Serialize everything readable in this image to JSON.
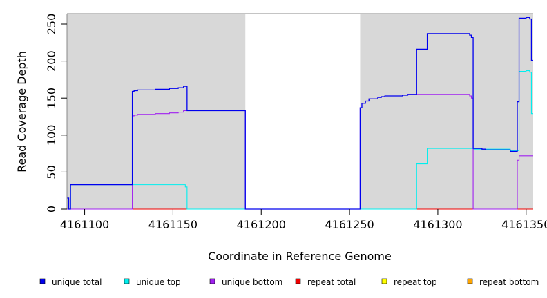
{
  "chart_data": {
    "type": "line",
    "title": "",
    "xlabel": "Coordinate in Reference Genome",
    "ylabel": "Read Coverage Depth",
    "xlim": [
      4161090,
      4161354
    ],
    "ylim": [
      0,
      264
    ],
    "xticks": [
      4161100,
      4161150,
      4161200,
      4161250,
      4161300,
      4161350
    ],
    "yticks": [
      0,
      50,
      100,
      150,
      200,
      250
    ],
    "background_color": "#d8d8d8",
    "unshaded_x_range": [
      4161191,
      4161256
    ],
    "grid": false,
    "legend_position": "bottom",
    "series": [
      {
        "name": "unique total",
        "color": "#0000ee",
        "steps": [
          [
            4161090,
            15
          ],
          [
            4161091,
            0
          ],
          [
            4161092,
            33
          ],
          [
            4161127,
            159
          ],
          [
            4161128,
            160
          ],
          [
            4161130,
            161
          ],
          [
            4161140,
            162
          ],
          [
            4161148,
            163
          ],
          [
            4161153,
            164
          ],
          [
            4161156,
            166
          ],
          [
            4161158,
            133
          ],
          [
            4161191,
            0
          ],
          [
            4161256,
            137
          ],
          [
            4161257,
            143
          ],
          [
            4161259,
            146
          ],
          [
            4161261,
            149
          ],
          [
            4161266,
            151
          ],
          [
            4161268,
            152
          ],
          [
            4161270,
            153
          ],
          [
            4161280,
            154
          ],
          [
            4161283,
            155
          ],
          [
            4161288,
            216
          ],
          [
            4161294,
            237
          ],
          [
            4161318,
            235
          ],
          [
            4161319,
            232
          ],
          [
            4161320,
            82
          ],
          [
            4161325,
            81
          ],
          [
            4161327,
            80
          ],
          [
            4161341,
            78
          ],
          [
            4161345,
            145
          ],
          [
            4161346,
            258
          ],
          [
            4161350,
            259
          ],
          [
            4161352,
            257
          ],
          [
            4161353,
            201
          ],
          [
            4161354,
            201
          ]
        ]
      },
      {
        "name": "unique top",
        "color": "#00eeee",
        "steps": [
          [
            4161090,
            0
          ],
          [
            4161092,
            33
          ],
          [
            4161127,
            33
          ],
          [
            4161157,
            30
          ],
          [
            4161158,
            0
          ],
          [
            4161288,
            61
          ],
          [
            4161294,
            82
          ],
          [
            4161320,
            81
          ],
          [
            4161341,
            79
          ],
          [
            4161345,
            79
          ],
          [
            4161346,
            186
          ],
          [
            4161350,
            187
          ],
          [
            4161352,
            185
          ],
          [
            4161353,
            129
          ],
          [
            4161354,
            129
          ]
        ]
      },
      {
        "name": "unique bottom",
        "color": "#a020f0",
        "steps": [
          [
            4161090,
            0
          ],
          [
            4161127,
            126
          ],
          [
            4161128,
            127
          ],
          [
            4161130,
            128
          ],
          [
            4161140,
            129
          ],
          [
            4161148,
            130
          ],
          [
            4161153,
            131
          ],
          [
            4161156,
            133
          ],
          [
            4161191,
            0
          ],
          [
            4161256,
            137
          ],
          [
            4161257,
            143
          ],
          [
            4161259,
            146
          ],
          [
            4161261,
            149
          ],
          [
            4161266,
            151
          ],
          [
            4161268,
            152
          ],
          [
            4161270,
            153
          ],
          [
            4161280,
            154
          ],
          [
            4161283,
            155
          ],
          [
            4161318,
            153
          ],
          [
            4161319,
            150
          ],
          [
            4161320,
            0
          ],
          [
            4161345,
            66
          ],
          [
            4161346,
            72
          ],
          [
            4161354,
            72
          ]
        ]
      },
      {
        "name": "repeat total",
        "color": "#ee0000",
        "steps": [
          [
            4161090,
            0
          ],
          [
            4161354,
            0
          ]
        ]
      },
      {
        "name": "repeat top",
        "color": "#ffff00",
        "steps": [
          [
            4161090,
            0
          ],
          [
            4161354,
            0
          ]
        ]
      },
      {
        "name": "repeat bottom",
        "color": "#ffa500",
        "steps": [
          [
            4161090,
            0
          ],
          [
            4161354,
            0
          ]
        ]
      }
    ]
  }
}
